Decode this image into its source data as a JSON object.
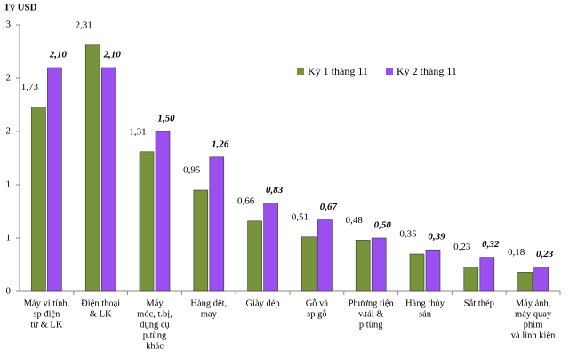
{
  "chart_data": {
    "type": "bar",
    "y_label": "Tỷ USD",
    "categories": [
      [
        "Máy vi tính,",
        "sp điện",
        "tử & LK"
      ],
      [
        "Điện thoại",
        "& LK"
      ],
      [
        "Máy",
        "móc, t.bị,",
        "dụng cụ",
        "p.tùng",
        "khác"
      ],
      [
        "Hàng dệt,",
        "may"
      ],
      [
        "Giày dép"
      ],
      [
        "Gỗ và",
        "sp gỗ"
      ],
      [
        "Phương tiện",
        "v.tải &",
        "p.tùng"
      ],
      [
        "Hàng thủy",
        "sản"
      ],
      [
        "Sắt thép"
      ],
      [
        "Máy ảnh,",
        "máy quay",
        "phim",
        "và linh kiện"
      ]
    ],
    "series": [
      {
        "name": "Kỳ 1 tháng 11",
        "color": "#77933c",
        "values": [
          1.73,
          2.31,
          1.31,
          0.95,
          0.66,
          0.51,
          0.48,
          0.35,
          0.23,
          0.18
        ],
        "value_labels": [
          "1,73",
          "2,31",
          "1,31",
          "0,95",
          "0,66",
          "0,51",
          "0,48",
          "0,35",
          "0,23",
          "0,18"
        ]
      },
      {
        "name": "Kỳ 2 tháng 11",
        "color": "#9b4ff0",
        "values": [
          2.1,
          2.1,
          1.5,
          1.26,
          0.83,
          0.67,
          0.5,
          0.39,
          0.32,
          0.23
        ],
        "value_labels": [
          "2,10",
          "2,10",
          "1,50",
          "1,26",
          "0,83",
          "0,67",
          "0,50",
          "0,39",
          "0,32",
          "0,23"
        ]
      }
    ],
    "ylim": [
      0,
      2.5
    ],
    "yticks": [
      0,
      {
        "value": 0.5,
        "label": "1"
      },
      1,
      {
        "value": 1.5,
        "label": "2"
      },
      2,
      {
        "value": 2.5,
        "label": "3"
      }
    ]
  }
}
